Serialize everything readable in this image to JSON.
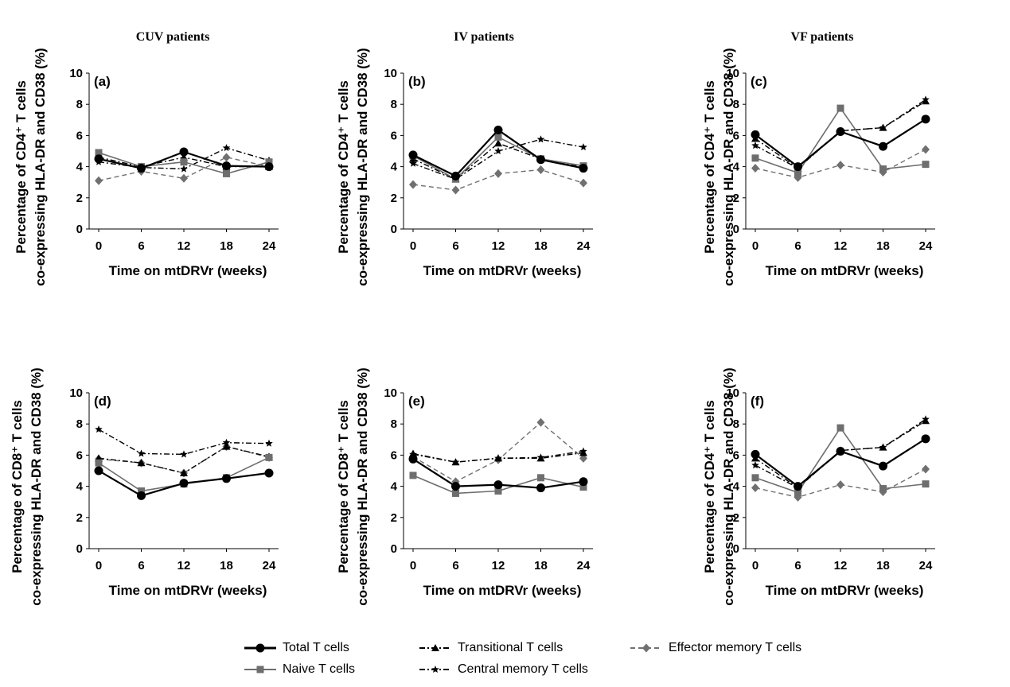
{
  "columns": [
    "CUV patients",
    "IV patients",
    "VF patients"
  ],
  "legend": [
    {
      "name": "Total T cells",
      "color": "#000000",
      "dash": "solid",
      "marker": "circle"
    },
    {
      "name": "Naive T cells",
      "color": "#6e6e6e",
      "dash": "solid",
      "marker": "square"
    },
    {
      "name": "Transitional T cells",
      "color": "#000000",
      "dash": "dashdot",
      "marker": "triangle"
    },
    {
      "name": "Central memory T cells",
      "color": "#000000",
      "dash": "dashdot",
      "marker": "star"
    },
    {
      "name": "Effector memory T cells",
      "color": "#707070",
      "dash": "dashed",
      "marker": "diamond"
    }
  ],
  "chart_data": [
    {
      "type": "line",
      "panel": "(a)",
      "title": "CUV patients",
      "xlabel": "Time on mtDRVr (weeks)",
      "ylabel_line1": "Percentage of CD4⁺ T cells",
      "ylabel_line2": "co-expressing HLA-DR and CD38 (%)",
      "categories": [
        "0",
        "6",
        "12",
        "18",
        "24"
      ],
      "ylim": [
        0,
        10
      ],
      "yticks": [
        "0",
        "2",
        "4",
        "6",
        "8",
        "10"
      ],
      "series": [
        {
          "name": "Total T cells",
          "values": [
            4.5,
            3.9,
            4.95,
            4.05,
            4.0
          ]
        },
        {
          "name": "Naive T cells",
          "values": [
            4.9,
            4.0,
            4.3,
            3.55,
            4.3
          ]
        },
        {
          "name": "Transitional T cells",
          "values": [
            4.6,
            4.0,
            4.6,
            4.0,
            4.0
          ]
        },
        {
          "name": "Central memory T cells",
          "values": [
            4.3,
            3.95,
            3.85,
            5.2,
            4.4
          ]
        },
        {
          "name": "Effector memory T cells",
          "values": [
            3.1,
            3.7,
            3.25,
            4.6,
            4.0
          ]
        }
      ]
    },
    {
      "type": "line",
      "panel": "(b)",
      "title": "IV patients",
      "xlabel": "Time on mtDRVr (weeks)",
      "ylabel_line1": "Percentage of CD4⁺ T cells",
      "ylabel_line2": "co-expressing HLA-DR and CD38 (%)",
      "categories": [
        "0",
        "6",
        "12",
        "18",
        "24"
      ],
      "ylim": [
        0,
        10
      ],
      "yticks": [
        "0",
        "2",
        "4",
        "6",
        "8",
        "10"
      ],
      "series": [
        {
          "name": "Total T cells",
          "values": [
            4.75,
            3.4,
            6.35,
            4.45,
            3.9
          ]
        },
        {
          "name": "Naive T cells",
          "values": [
            4.7,
            3.2,
            5.9,
            4.5,
            4.05
          ]
        },
        {
          "name": "Transitional T cells",
          "values": [
            4.5,
            3.2,
            5.5,
            4.5,
            4.0
          ]
        },
        {
          "name": "Central memory T cells",
          "values": [
            4.2,
            3.2,
            5.0,
            5.75,
            5.25
          ]
        },
        {
          "name": "Effector memory T cells",
          "values": [
            2.85,
            2.5,
            3.55,
            3.8,
            2.95
          ]
        }
      ]
    },
    {
      "type": "line",
      "panel": "(c)",
      "title": "VF patients",
      "xlabel": "Time on mtDRVr (weeks)",
      "ylabel_line1": "Percentage of CD4⁺ T cells",
      "ylabel_line2": "co-expressing HLA-DR and CD38 (%)",
      "categories": [
        "0",
        "6",
        "12",
        "18",
        "24"
      ],
      "ylim": [
        0,
        10
      ],
      "yticks": [
        "0",
        "2",
        "4",
        "6",
        "8",
        "10"
      ],
      "series": [
        {
          "name": "Total T cells",
          "values": [
            6.05,
            4.0,
            6.25,
            5.3,
            7.05
          ]
        },
        {
          "name": "Naive T cells",
          "values": [
            4.55,
            3.6,
            7.75,
            3.85,
            4.15
          ]
        },
        {
          "name": "Transitional T cells",
          "values": [
            5.8,
            3.9,
            6.3,
            6.5,
            8.2
          ]
        },
        {
          "name": "Central memory T cells",
          "values": [
            5.35,
            3.9,
            6.3,
            6.5,
            8.3
          ]
        },
        {
          "name": "Effector memory T cells",
          "values": [
            3.9,
            3.3,
            4.1,
            3.65,
            5.1
          ]
        }
      ]
    },
    {
      "type": "line",
      "panel": "(d)",
      "xlabel": "Time on mtDRVr (weeks)",
      "ylabel_line1": "Percentage of CD8⁺ T cells",
      "ylabel_line2": "co-expressing HLA-DR and CD38 (%)",
      "categories": [
        "0",
        "6",
        "12",
        "18",
        "24"
      ],
      "ylim": [
        0,
        10
      ],
      "yticks": [
        "0",
        "2",
        "4",
        "6",
        "8",
        "10"
      ],
      "series": [
        {
          "name": "Total T cells",
          "values": [
            5.0,
            3.4,
            4.2,
            4.5,
            4.85
          ]
        },
        {
          "name": "Naive T cells",
          "values": [
            5.5,
            3.7,
            4.15,
            4.55,
            5.85
          ]
        },
        {
          "name": "Transitional T cells",
          "values": [
            5.8,
            5.5,
            4.85,
            6.55,
            5.9
          ]
        },
        {
          "name": "Central memory T cells",
          "values": [
            7.65,
            6.1,
            6.05,
            6.8,
            6.75
          ]
        },
        {
          "name": "Effector memory T cells",
          "values": [
            5.75,
            5.5,
            4.85,
            6.55,
            5.85
          ]
        }
      ]
    },
    {
      "type": "line",
      "panel": "(e)",
      "xlabel": "Time on mtDRVr (weeks)",
      "ylabel_line1": "Percentage of CD8⁺ T cells",
      "ylabel_line2": "co-expressing HLA-DR and CD38 (%)",
      "categories": [
        "0",
        "6",
        "12",
        "18",
        "24"
      ],
      "ylim": [
        0,
        10
      ],
      "yticks": [
        "0",
        "2",
        "4",
        "6",
        "8",
        "10"
      ],
      "series": [
        {
          "name": "Total T cells",
          "values": [
            5.75,
            4.0,
            4.1,
            3.9,
            4.3
          ]
        },
        {
          "name": "Naive T cells",
          "values": [
            4.7,
            3.55,
            3.7,
            4.55,
            3.95
          ]
        },
        {
          "name": "Transitional T cells",
          "values": [
            6.1,
            5.55,
            5.8,
            5.8,
            6.15
          ]
        },
        {
          "name": "Central memory T cells",
          "values": [
            6.05,
            5.55,
            5.8,
            5.85,
            6.25
          ]
        },
        {
          "name": "Effector memory T cells",
          "values": [
            5.9,
            4.3,
            5.7,
            8.1,
            5.8
          ]
        }
      ]
    },
    {
      "type": "line",
      "panel": "(f)",
      "xlabel": "Time on mtDRVr (weeks)",
      "ylabel_line1": "Percentage of CD4⁺ T cells",
      "ylabel_line2": "co-expressing HLA-DR and CD38 (%)",
      "categories": [
        "0",
        "6",
        "12",
        "18",
        "24"
      ],
      "ylim": [
        0,
        10
      ],
      "yticks": [
        "0",
        "2",
        "4",
        "6",
        "8",
        "10"
      ],
      "series": [
        {
          "name": "Total T cells",
          "values": [
            6.05,
            4.0,
            6.25,
            5.3,
            7.05
          ]
        },
        {
          "name": "Naive T cells",
          "values": [
            4.55,
            3.6,
            7.75,
            3.85,
            4.15
          ]
        },
        {
          "name": "Transitional T cells",
          "values": [
            5.8,
            3.9,
            6.3,
            6.5,
            8.2
          ]
        },
        {
          "name": "Central memory T cells",
          "values": [
            5.35,
            3.9,
            6.3,
            6.5,
            8.3
          ]
        },
        {
          "name": "Effector memory T cells",
          "values": [
            3.9,
            3.3,
            4.1,
            3.65,
            5.1
          ]
        }
      ]
    }
  ]
}
